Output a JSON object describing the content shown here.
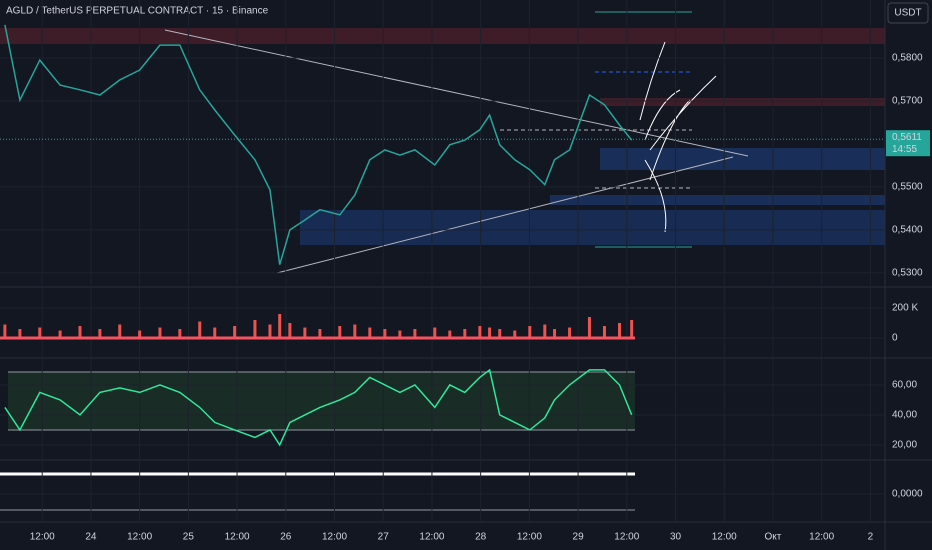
{
  "chart_data": [
    {
      "type": "line",
      "title": "AGLD / TetherUS PERPETUAL CONTRACT · 15 · Binance",
      "currency": "USDT",
      "color": "#26a69a",
      "last_price": {
        "value": 0.5611,
        "label": "0,5611"
      },
      "countdown": "14:55",
      "x": [
        -21.2,
        -17.5,
        -12.6,
        -7.6,
        -2.7,
        2.2,
        7.1,
        12,
        17,
        21.9,
        26.8,
        30.5,
        35.4,
        40.4,
        44.1,
        46.5,
        49,
        52.7,
        56.4,
        61.3,
        65,
        68.7,
        72.4,
        76.1,
        79.8,
        84.7,
        88.4,
        92.1,
        95.8,
        98.2,
        100.7,
        104.4,
        108.1,
        111.8,
        114.2,
        117.9,
        122.8,
        126.5,
        130.2,
        133.2
      ],
      "values": [
        0.5877,
        0.5702,
        0.5795,
        0.5737,
        0.5726,
        0.5714,
        0.5749,
        0.5772,
        0.583,
        0.583,
        0.5726,
        0.5679,
        0.5621,
        0.5563,
        0.5493,
        0.5319,
        0.54,
        0.5423,
        0.5447,
        0.5435,
        0.5481,
        0.5563,
        0.5586,
        0.5574,
        0.5586,
        0.5551,
        0.5598,
        0.5609,
        0.5633,
        0.5667,
        0.5598,
        0.5563,
        0.554,
        0.5505,
        0.5563,
        0.5586,
        0.5714,
        0.5691,
        0.5644,
        0.5609
      ],
      "xlim": [
        -22.4,
        195.6
      ],
      "xticks": [
        {
          "value": -12,
          "label": "12:00"
        },
        {
          "value": 0,
          "label": "24"
        },
        {
          "value": 12,
          "label": "12:00"
        },
        {
          "value": 24,
          "label": "25"
        },
        {
          "value": 36,
          "label": "12:00"
        },
        {
          "value": 48,
          "label": "26"
        },
        {
          "value": 60,
          "label": "12:00"
        },
        {
          "value": 72,
          "label": "27"
        },
        {
          "value": 84,
          "label": "12:00"
        },
        {
          "value": 96,
          "label": "28"
        },
        {
          "value": 108,
          "label": "12:00"
        },
        {
          "value": 120,
          "label": "29"
        },
        {
          "value": 132,
          "label": "12:00"
        },
        {
          "value": 144,
          "label": "30"
        },
        {
          "value": 156,
          "label": "12:00"
        },
        {
          "value": 168,
          "label": "Окт"
        },
        {
          "value": 180,
          "label": "12:00"
        },
        {
          "value": 192,
          "label": "2"
        }
      ],
      "ylim": [
        0.5267,
        0.5935
      ],
      "yticks": [
        {
          "value": 0.58,
          "label": "0,5800"
        },
        {
          "value": 0.57,
          "label": "0,5700"
        },
        {
          "value": 0.55,
          "label": "0,5500"
        },
        {
          "value": 0.54,
          "label": "0,5400"
        },
        {
          "value": 0.53,
          "label": "0,5300"
        }
      ]
    },
    {
      "type": "bar",
      "color": "#ef5350",
      "x": [
        -21.2,
        -17.5,
        -12.6,
        -7.6,
        -2.7,
        2.2,
        7.1,
        12,
        17,
        21.9,
        26.8,
        30.5,
        35.4,
        40.4,
        44.1,
        46.5,
        49,
        52.7,
        56.4,
        61.3,
        65,
        68.7,
        72.4,
        76.1,
        79.8,
        84.7,
        88.4,
        92.1,
        95.8,
        98.2,
        100.7,
        104.4,
        108.1,
        111.8,
        114.2,
        117.9,
        122.8,
        126.5,
        130.2,
        133.2
      ],
      "values": [
        90000,
        60000,
        70000,
        50000,
        80000,
        60000,
        90000,
        50000,
        70000,
        60000,
        110000,
        70000,
        80000,
        120000,
        90000,
        160000,
        100000,
        70000,
        60000,
        80000,
        90000,
        70000,
        60000,
        50000,
        60000,
        70000,
        50000,
        60000,
        80000,
        70000,
        60000,
        50000,
        80000,
        90000,
        60000,
        70000,
        140000,
        80000,
        100000,
        120000
      ],
      "ylim": [
        -113000,
        320000
      ],
      "yticks": [
        {
          "value": 200000,
          "label": "200 K"
        },
        0
      ]
    },
    {
      "type": "line",
      "color": "#2ee89b",
      "x": [
        -21.2,
        -17.5,
        -12.6,
        -7.6,
        -2.7,
        2.2,
        7.1,
        12,
        17,
        21.9,
        26.8,
        30.5,
        35.4,
        40.4,
        44.1,
        46.5,
        49,
        52.7,
        56.4,
        61.3,
        65,
        68.7,
        72.4,
        76.1,
        79.8,
        84.7,
        88.4,
        92.1,
        95.8,
        98.2,
        100.7,
        104.4,
        108.1,
        111.8,
        114.2,
        117.9,
        122.8,
        126.5,
        130.2,
        133.2
      ],
      "values": [
        45,
        30,
        55,
        50,
        40,
        55,
        58,
        55,
        60,
        55,
        45,
        35,
        30,
        25,
        30,
        20,
        35,
        40,
        45,
        50,
        55,
        65,
        60,
        55,
        60,
        45,
        60,
        55,
        65,
        70,
        40,
        35,
        30,
        38,
        50,
        60,
        70,
        70,
        60,
        40
      ],
      "ylim": [
        11.3,
        71.3
      ],
      "yticks": [
        {
          "value": 60,
          "label": "60,00"
        },
        {
          "value": 40,
          "label": "40,00"
        },
        {
          "value": 20,
          "label": "20,00"
        }
      ]
    },
    {
      "type": "line",
      "ylim": [
        -0.75,
        1
      ],
      "yticks": [
        {
          "value": 0,
          "label": "0,0000"
        }
      ]
    }
  ]
}
